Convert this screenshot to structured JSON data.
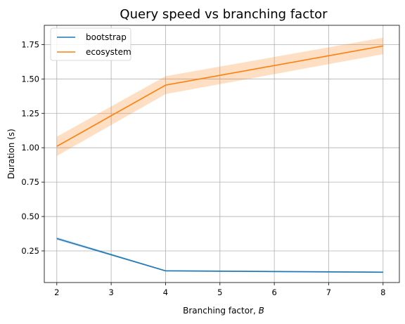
{
  "chart_data": {
    "type": "line",
    "title": "Query speed vs branching factor",
    "xlabel": "Branching factor, ",
    "xlabel_var": "B",
    "ylabel": "Duration (s)",
    "xlim": [
      1.77,
      8.3
    ],
    "ylim": [
      0.02,
      1.89
    ],
    "xticks": [
      2,
      3,
      4,
      5,
      6,
      7,
      8
    ],
    "xtick_labels": [
      "2",
      "3",
      "4",
      "5",
      "6",
      "7",
      "8"
    ],
    "yticks": [
      0.25,
      0.5,
      0.75,
      1.0,
      1.25,
      1.5,
      1.75
    ],
    "ytick_labels": [
      "0.25",
      "0.50",
      "0.75",
      "1.00",
      "1.25",
      "1.50",
      "1.75"
    ],
    "grid": true,
    "legend_position": "top-left",
    "series": [
      {
        "name": "bootstrap",
        "color": "#1f77b4",
        "x": [
          2,
          4,
          8
        ],
        "values": [
          0.34,
          0.105,
          0.095
        ],
        "lower": [
          0.33,
          0.1,
          0.09
        ],
        "upper": [
          0.35,
          0.11,
          0.1
        ]
      },
      {
        "name": "ecosystem",
        "color": "#ff7f0e",
        "x": [
          2,
          4,
          8
        ],
        "values": [
          1.01,
          1.455,
          1.74
        ],
        "lower": [
          0.94,
          1.39,
          1.68
        ],
        "upper": [
          1.08,
          1.52,
          1.8
        ]
      }
    ]
  }
}
